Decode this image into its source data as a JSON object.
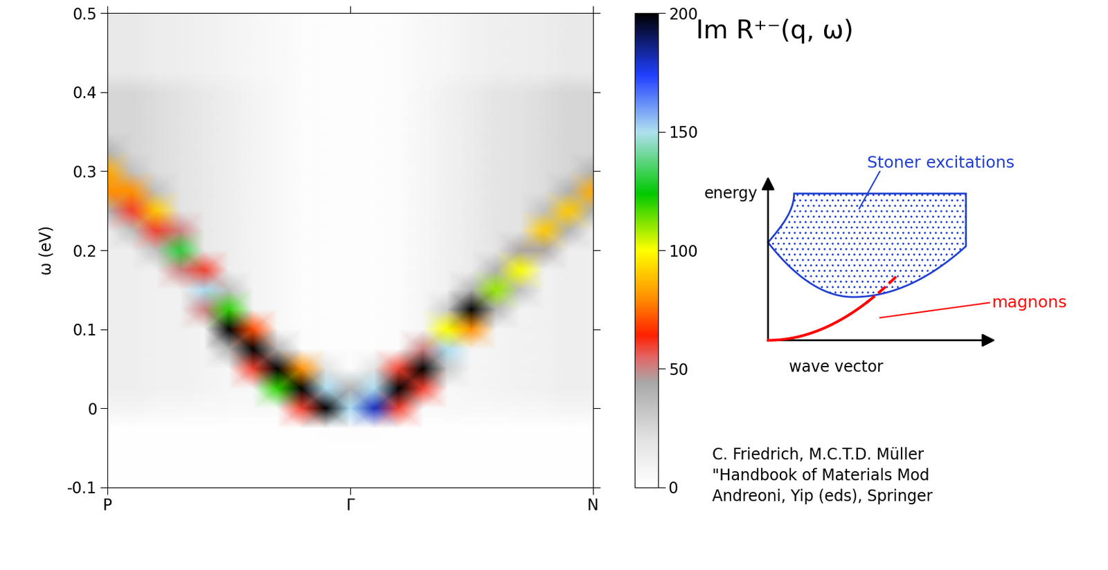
{
  "chart_data": {
    "type": "heatmap",
    "title": "Im R⁺⁻(q, ω)",
    "y_label": "ω (eV)",
    "x": [
      0.0,
      0.1,
      0.2,
      0.3,
      0.4,
      0.5,
      0.6,
      0.7,
      0.8,
      0.9,
      1.0,
      1.1,
      1.2,
      1.3,
      1.4,
      1.5,
      1.6,
      1.7,
      1.8,
      1.9,
      2.0
    ],
    "y": [
      -0.1,
      -0.075,
      -0.05,
      -0.025,
      0,
      0.025,
      0.05,
      0.075,
      0.1,
      0.125,
      0.15,
      0.175,
      0.2,
      0.225,
      0.25,
      0.275,
      0.3,
      0.325,
      0.35,
      0.375,
      0.4,
      0.425,
      0.45,
      0.475,
      0.5
    ],
    "xlim": [
      0,
      2
    ],
    "xticks": [
      {
        "value": 0,
        "label": "P"
      },
      {
        "value": 1,
        "label": "Γ"
      },
      {
        "value": 2,
        "label": "N"
      }
    ],
    "ylim": [
      -0.1,
      0.5
    ],
    "yticks": [
      -0.1,
      0,
      0.1,
      0.2,
      0.3,
      0.4,
      0.5
    ],
    "cells": [
      [
        1,
        1,
        1,
        1,
        1,
        1,
        1,
        1,
        1,
        1,
        1,
        1,
        1,
        1,
        1,
        1,
        1,
        1,
        1,
        1,
        1
      ],
      [
        1,
        1,
        1,
        1,
        1,
        1,
        1,
        1,
        1,
        1,
        1,
        1,
        1,
        1,
        1,
        1,
        1,
        1,
        1,
        1,
        1
      ],
      [
        1,
        1,
        1,
        1,
        1,
        1,
        1,
        1,
        1,
        1,
        1,
        1,
        1,
        1,
        1,
        1,
        1,
        1,
        1,
        1,
        1
      ],
      [
        1,
        1,
        1,
        1,
        1,
        1,
        1,
        1,
        1,
        2,
        2,
        2,
        1,
        1,
        1,
        1,
        1,
        1,
        1,
        1,
        1
      ],
      [
        8,
        8,
        6,
        6,
        5,
        4,
        4,
        4,
        60,
        200,
        150,
        180,
        60,
        4,
        4,
        5,
        5,
        6,
        6,
        8,
        8
      ],
      [
        12,
        12,
        10,
        10,
        8,
        6,
        5,
        120,
        200,
        150,
        40,
        150,
        200,
        60,
        5,
        7,
        8,
        9,
        10,
        12,
        12
      ],
      [
        12,
        12,
        10,
        10,
        8,
        6,
        60,
        200,
        80,
        20,
        2,
        20,
        60,
        200,
        30,
        7,
        8,
        9,
        10,
        12,
        12
      ],
      [
        12,
        12,
        10,
        10,
        8,
        40,
        200,
        40,
        3,
        2,
        2,
        2,
        3,
        50,
        150,
        7,
        8,
        9,
        10,
        12,
        12
      ],
      [
        12,
        12,
        10,
        10,
        8,
        200,
        70,
        5,
        3,
        2,
        2,
        2,
        3,
        6,
        100,
        80,
        8,
        9,
        10,
        12,
        12
      ],
      [
        12,
        12,
        10,
        10,
        50,
        120,
        8,
        5,
        3,
        2,
        2,
        2,
        3,
        6,
        30,
        200,
        40,
        9,
        10,
        12,
        12
      ],
      [
        12,
        12,
        10,
        10,
        150,
        35,
        8,
        5,
        3,
        2,
        2,
        2,
        3,
        6,
        10,
        40,
        110,
        35,
        10,
        12,
        12
      ],
      [
        12,
        12,
        10,
        50,
        60,
        12,
        8,
        5,
        3,
        2,
        2,
        2,
        3,
        6,
        10,
        14,
        40,
        100,
        10,
        12,
        12
      ],
      [
        12,
        12,
        35,
        130,
        15,
        12,
        8,
        5,
        3,
        2,
        2,
        2,
        3,
        6,
        10,
        14,
        18,
        45,
        45,
        12,
        12
      ],
      [
        12,
        35,
        60,
        50,
        15,
        12,
        8,
        5,
        3,
        2,
        2,
        2,
        3,
        6,
        10,
        14,
        18,
        20,
        90,
        40,
        12
      ],
      [
        40,
        60,
        90,
        20,
        15,
        12,
        8,
        5,
        3,
        2,
        2,
        2,
        3,
        6,
        10,
        14,
        18,
        20,
        35,
        90,
        40
      ],
      [
        80,
        80,
        35,
        20,
        15,
        12,
        8,
        5,
        3,
        2,
        2,
        2,
        3,
        6,
        10,
        14,
        18,
        20,
        22,
        40,
        85
      ],
      [
        85,
        35,
        22,
        20,
        15,
        12,
        8,
        5,
        3,
        2,
        2,
        2,
        3,
        6,
        10,
        14,
        18,
        20,
        22,
        25,
        40
      ],
      [
        40,
        25,
        22,
        20,
        15,
        12,
        8,
        5,
        3,
        2,
        2,
        2,
        3,
        6,
        10,
        14,
        18,
        20,
        22,
        25,
        25
      ],
      [
        25,
        25,
        22,
        20,
        15,
        12,
        8,
        5,
        3,
        2,
        2,
        2,
        3,
        6,
        10,
        14,
        18,
        20,
        22,
        25,
        25
      ],
      [
        25,
        25,
        22,
        20,
        15,
        12,
        8,
        5,
        3,
        2,
        2,
        2,
        3,
        6,
        10,
        14,
        18,
        20,
        22,
        25,
        25
      ],
      [
        25,
        25,
        22,
        20,
        15,
        12,
        8,
        5,
        3,
        2,
        2,
        2,
        3,
        6,
        10,
        14,
        18,
        20,
        22,
        25,
        25
      ],
      [
        15,
        15,
        13,
        12,
        10,
        8,
        6,
        4,
        3,
        2,
        2,
        2,
        3,
        5,
        7,
        9,
        11,
        12,
        13,
        15,
        15
      ],
      [
        15,
        15,
        13,
        12,
        10,
        8,
        6,
        4,
        3,
        2,
        2,
        2,
        3,
        5,
        7,
        9,
        11,
        12,
        13,
        15,
        15
      ],
      [
        15,
        15,
        13,
        12,
        10,
        8,
        6,
        4,
        3,
        2,
        2,
        2,
        3,
        5,
        7,
        9,
        11,
        12,
        13,
        15,
        15
      ],
      [
        15,
        15,
        13,
        12,
        10,
        8,
        6,
        4,
        3,
        2,
        2,
        2,
        3,
        5,
        7,
        9,
        11,
        12,
        13,
        15,
        15
      ]
    ],
    "colorbar": {
      "range": [
        0,
        200
      ],
      "ticks": [
        0,
        50,
        100,
        150,
        200
      ]
    },
    "inset": {
      "y_label": "energy",
      "x_label": "wave vector",
      "region_label": "Stoner excitations",
      "curve_label": "magnons"
    },
    "citation": [
      "C. Friedrich, M.C.T.D. Müller",
      "\"Handbook of Materials Mod",
      "Andreoni, Yip (eds), Springer"
    ]
  }
}
